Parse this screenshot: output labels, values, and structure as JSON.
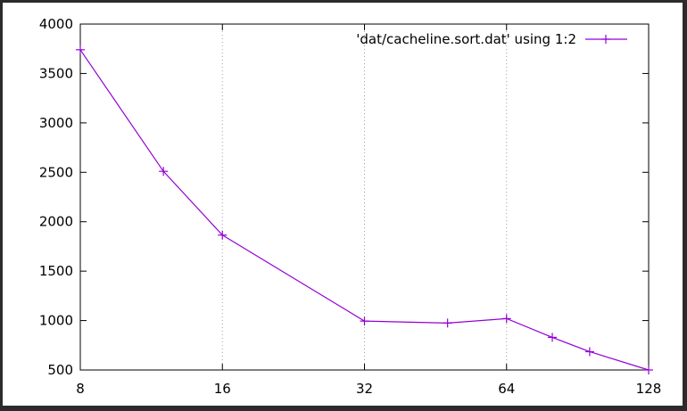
{
  "chart_data": {
    "type": "line",
    "x_scale": "log2",
    "xlim": [
      8,
      128
    ],
    "ylim": [
      500,
      4000
    ],
    "x_ticks": [
      8,
      16,
      32,
      64,
      128
    ],
    "y_ticks": [
      500,
      1000,
      1500,
      2000,
      2500,
      3000,
      3500,
      4000
    ],
    "x_tick_labels": [
      "8",
      "16",
      "32",
      "64",
      "128"
    ],
    "y_tick_labels": [
      "500",
      "1000",
      "1500",
      "2000",
      "2500",
      "3000",
      "3500",
      "4000"
    ],
    "grid": "vertical dotted lines at x ticks",
    "legend_position": "top-right",
    "series": [
      {
        "name": "'dat/cacheline.sort.dat' using 1:2",
        "color": "#9400d3",
        "marker": "plus",
        "x": [
          8,
          12,
          16,
          32,
          48,
          64,
          80,
          96,
          128
        ],
        "y": [
          3740,
          2510,
          1865,
          995,
          975,
          1020,
          830,
          685,
          500
        ]
      }
    ]
  }
}
